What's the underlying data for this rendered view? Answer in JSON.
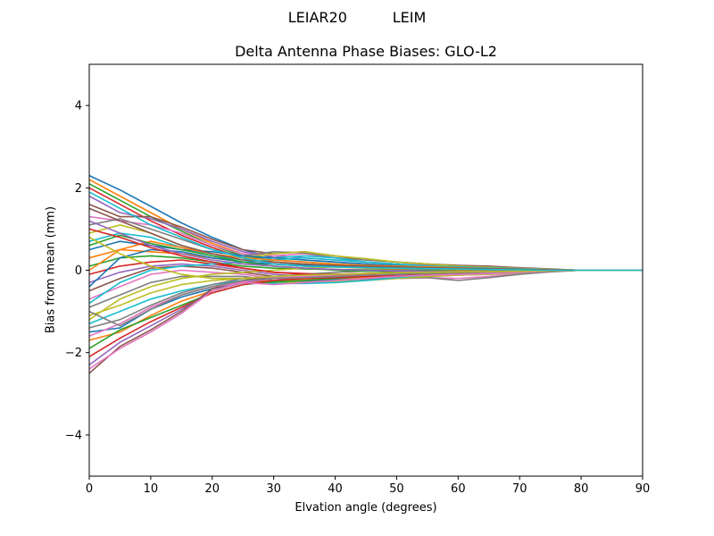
{
  "suptitle": "LEIAR20          LEIM",
  "chart_data": {
    "type": "line",
    "title": "Delta Antenna Phase Biases: GLO-L2",
    "xlabel": "Elvation angle (degrees)",
    "ylabel": "Bias from mean (mm)",
    "xlim": [
      0,
      90
    ],
    "ylim": [
      -5,
      5
    ],
    "xticks": [
      0,
      10,
      20,
      30,
      40,
      50,
      60,
      70,
      80,
      90
    ],
    "yticks": [
      -4,
      -2,
      0,
      2,
      4
    ],
    "ytick_labels": [
      "−4",
      "−2",
      "0",
      "2",
      "4"
    ],
    "grid": false,
    "legend": "none",
    "colors": [
      "#1f77b4",
      "#ff7f0e",
      "#2ca02c",
      "#d62728",
      "#9467bd",
      "#8c564b",
      "#e377c2",
      "#7f7f7f",
      "#bcbd22",
      "#17becf"
    ],
    "x": [
      0,
      5,
      10,
      15,
      20,
      25,
      30,
      35,
      40,
      45,
      50,
      55,
      60,
      65,
      70,
      75,
      80,
      85,
      90
    ],
    "series": [
      {
        "values": [
          2.3,
          1.95,
          1.55,
          1.15,
          0.8,
          0.5,
          0.3,
          0.25,
          0.2,
          0.15,
          0.12,
          0.1,
          0.08,
          0.06,
          0.04,
          0.02,
          0.0,
          0.0,
          0.0
        ]
      },
      {
        "values": [
          2.2,
          1.8,
          1.4,
          1.0,
          0.65,
          0.4,
          0.2,
          0.15,
          0.1,
          0.08,
          0.06,
          0.05,
          0.04,
          0.03,
          0.02,
          0.01,
          0.0,
          0.0,
          0.0
        ]
      },
      {
        "values": [
          2.1,
          1.7,
          1.3,
          0.95,
          0.6,
          0.35,
          0.25,
          0.2,
          0.15,
          0.1,
          0.08,
          0.06,
          0.05,
          0.04,
          0.03,
          0.01,
          0.0,
          0.0,
          0.0
        ]
      },
      {
        "values": [
          2.0,
          1.6,
          1.2,
          0.85,
          0.55,
          0.3,
          0.15,
          0.1,
          0.08,
          0.06,
          0.05,
          0.04,
          0.03,
          0.02,
          0.01,
          0.0,
          0.0,
          0.0,
          0.0
        ]
      },
      {
        "values": [
          1.8,
          1.4,
          1.25,
          1.0,
          0.7,
          0.45,
          0.35,
          0.3,
          0.25,
          0.2,
          0.15,
          0.12,
          0.1,
          0.08,
          0.05,
          0.02,
          0.0,
          0.0,
          0.0
        ]
      },
      {
        "values": [
          1.6,
          1.3,
          1.3,
          1.05,
          0.75,
          0.5,
          0.4,
          0.45,
          0.35,
          0.25,
          0.2,
          0.15,
          0.12,
          0.1,
          0.06,
          0.03,
          0.0,
          0.0,
          0.0
        ]
      },
      {
        "values": [
          1.3,
          1.2,
          1.1,
          0.9,
          0.6,
          0.4,
          0.35,
          0.4,
          0.3,
          0.2,
          0.15,
          0.1,
          0.08,
          0.06,
          0.04,
          0.02,
          0.0,
          0.0,
          0.0
        ]
      },
      {
        "values": [
          1.1,
          1.25,
          1.0,
          0.75,
          0.5,
          0.35,
          0.45,
          0.42,
          0.3,
          0.25,
          0.2,
          0.15,
          0.1,
          0.08,
          0.05,
          0.02,
          0.0,
          0.0,
          0.0
        ]
      },
      {
        "values": [
          0.9,
          1.1,
          0.9,
          0.6,
          0.4,
          0.3,
          0.4,
          0.45,
          0.35,
          0.28,
          0.2,
          0.15,
          0.1,
          0.07,
          0.04,
          0.02,
          0.0,
          0.0,
          0.0
        ]
      },
      {
        "values": [
          0.7,
          0.9,
          0.8,
          0.55,
          0.35,
          0.25,
          0.3,
          0.35,
          0.3,
          0.2,
          0.15,
          0.1,
          0.08,
          0.05,
          0.03,
          0.01,
          0.0,
          0.0,
          0.0
        ]
      },
      {
        "values": [
          0.5,
          0.7,
          0.6,
          0.5,
          0.45,
          0.35,
          0.3,
          0.25,
          0.2,
          0.15,
          0.1,
          0.08,
          0.06,
          0.04,
          0.02,
          0.01,
          0.0,
          0.0,
          0.0
        ]
      },
      {
        "values": [
          0.3,
          0.5,
          0.45,
          0.4,
          0.3,
          0.2,
          0.15,
          0.1,
          0.08,
          0.05,
          0.03,
          0.02,
          0.01,
          0.0,
          0.0,
          0.0,
          0.0,
          0.0,
          0.0
        ]
      },
      {
        "values": [
          0.1,
          0.3,
          0.35,
          0.3,
          0.2,
          0.1,
          0.05,
          0.03,
          0.02,
          0.01,
          0.0,
          -0.01,
          -0.02,
          -0.02,
          -0.01,
          0.0,
          0.0,
          0.0,
          0.0
        ]
      },
      {
        "values": [
          -0.1,
          0.1,
          0.2,
          0.25,
          0.15,
          0.05,
          -0.05,
          -0.08,
          -0.1,
          -0.08,
          -0.06,
          -0.05,
          -0.04,
          -0.03,
          -0.02,
          -0.01,
          0.0,
          0.0,
          0.0
        ]
      },
      {
        "values": [
          -0.3,
          -0.05,
          0.1,
          0.15,
          0.1,
          0.0,
          -0.1,
          -0.15,
          -0.2,
          -0.18,
          -0.15,
          -0.12,
          -0.1,
          -0.08,
          -0.05,
          -0.02,
          0.0,
          0.0,
          0.0
        ]
      },
      {
        "values": [
          -0.5,
          -0.2,
          0.05,
          0.1,
          0.05,
          -0.05,
          -0.15,
          -0.2,
          -0.25,
          -0.2,
          -0.18,
          -0.15,
          -0.12,
          -0.1,
          -0.06,
          -0.03,
          0.0,
          0.0,
          0.0
        ]
      },
      {
        "values": [
          -0.7,
          -0.4,
          -0.1,
          0.0,
          -0.05,
          -0.1,
          -0.2,
          -0.25,
          -0.3,
          -0.25,
          -0.2,
          -0.18,
          -0.2,
          -0.15,
          -0.08,
          -0.03,
          0.0,
          0.0,
          0.0
        ]
      },
      {
        "values": [
          -0.9,
          -0.6,
          -0.3,
          -0.15,
          -0.15,
          -0.15,
          -0.25,
          -0.28,
          -0.25,
          -0.22,
          -0.2,
          -0.18,
          -0.25,
          -0.18,
          -0.1,
          -0.04,
          0.0,
          0.0,
          0.0
        ]
      },
      {
        "values": [
          -1.1,
          -0.85,
          -0.55,
          -0.35,
          -0.25,
          -0.2,
          -0.3,
          -0.3,
          -0.28,
          -0.25,
          -0.2,
          -0.15,
          -0.12,
          -0.1,
          -0.06,
          -0.02,
          0.0,
          0.0,
          0.0
        ]
      },
      {
        "values": [
          -1.3,
          -1.0,
          -0.7,
          -0.5,
          -0.35,
          -0.25,
          -0.32,
          -0.32,
          -0.3,
          -0.25,
          -0.18,
          -0.12,
          -0.1,
          -0.08,
          -0.05,
          -0.02,
          0.0,
          0.0,
          0.0
        ]
      },
      {
        "values": [
          -1.5,
          -1.4,
          -0.95,
          -0.65,
          -0.45,
          -0.3,
          -0.28,
          -0.25,
          -0.22,
          -0.2,
          -0.15,
          -0.1,
          -0.08,
          -0.06,
          -0.04,
          -0.02,
          0.0,
          0.0,
          0.0
        ]
      },
      {
        "values": [
          -1.7,
          -1.5,
          -1.1,
          -0.75,
          -0.5,
          -0.3,
          -0.25,
          -0.22,
          -0.2,
          -0.18,
          -0.15,
          -0.12,
          -0.1,
          -0.07,
          -0.04,
          -0.02,
          0.0,
          0.0,
          0.0
        ]
      },
      {
        "values": [
          -1.9,
          -1.45,
          -1.15,
          -0.85,
          -0.55,
          -0.35,
          -0.28,
          -0.25,
          -0.2,
          -0.15,
          -0.12,
          -0.1,
          -0.08,
          -0.06,
          -0.04,
          -0.02,
          0.0,
          0.0,
          0.0
        ]
      },
      {
        "values": [
          -2.1,
          -1.65,
          -1.25,
          -0.9,
          -0.55,
          -0.35,
          -0.25,
          -0.2,
          -0.18,
          -0.15,
          -0.12,
          -0.1,
          -0.08,
          -0.06,
          -0.04,
          -0.02,
          0.0,
          0.0,
          0.0
        ]
      },
      {
        "values": [
          -2.3,
          -1.75,
          -1.35,
          -0.95,
          -0.5,
          -0.3,
          -0.2,
          -0.18,
          -0.15,
          -0.12,
          -0.1,
          -0.08,
          -0.06,
          -0.05,
          -0.03,
          -0.01,
          0.0,
          0.0,
          0.0
        ]
      },
      {
        "values": [
          -2.5,
          -1.85,
          -1.45,
          -1.0,
          -0.45,
          -0.25,
          -0.15,
          -0.12,
          -0.1,
          -0.08,
          -0.06,
          -0.05,
          -0.04,
          -0.03,
          -0.02,
          -0.01,
          0.0,
          0.0,
          0.0
        ]
      },
      {
        "values": [
          -2.4,
          -1.9,
          -1.5,
          -1.05,
          -0.5,
          -0.28,
          -0.18,
          -0.15,
          -0.12,
          -0.1,
          -0.08,
          -0.06,
          -0.05,
          -0.04,
          -0.02,
          -0.01,
          0.0,
          0.0,
          0.0
        ]
      },
      {
        "values": [
          -1.4,
          -1.2,
          -0.85,
          -0.55,
          -0.35,
          -0.2,
          -0.15,
          -0.1,
          -0.05,
          -0.02,
          0.0,
          0.02,
          0.03,
          0.02,
          0.01,
          0.0,
          0.0,
          0.0,
          0.0
        ]
      },
      {
        "values": [
          -1.2,
          -0.7,
          -0.4,
          -0.2,
          -0.1,
          -0.05,
          0.0,
          0.05,
          0.08,
          0.06,
          0.05,
          0.04,
          0.03,
          0.02,
          0.01,
          0.0,
          0.0,
          0.0,
          0.0
        ]
      },
      {
        "values": [
          -0.8,
          -0.3,
          0.0,
          0.1,
          0.15,
          0.2,
          0.25,
          0.3,
          0.25,
          0.2,
          0.15,
          0.1,
          0.08,
          0.05,
          0.03,
          0.01,
          0.0,
          0.0,
          0.0
        ]
      },
      {
        "values": [
          -0.4,
          0.3,
          0.5,
          0.45,
          0.3,
          0.2,
          0.15,
          0.12,
          0.1,
          0.08,
          0.06,
          0.05,
          0.04,
          0.03,
          0.02,
          0.01,
          0.0,
          0.0,
          0.0
        ]
      },
      {
        "values": [
          0.0,
          0.5,
          0.7,
          0.55,
          0.4,
          0.3,
          0.25,
          0.2,
          0.15,
          0.12,
          0.1,
          0.08,
          0.06,
          0.04,
          0.02,
          0.01,
          0.0,
          0.0,
          0.0
        ]
      },
      {
        "values": [
          0.6,
          0.85,
          0.65,
          0.5,
          0.35,
          0.2,
          0.1,
          0.05,
          0.0,
          -0.02,
          -0.04,
          -0.05,
          -0.04,
          -0.03,
          -0.02,
          -0.01,
          0.0,
          0.0,
          0.0
        ]
      },
      {
        "values": [
          1.0,
          0.8,
          0.55,
          0.35,
          0.2,
          0.05,
          -0.05,
          -0.1,
          -0.1,
          -0.08,
          -0.06,
          -0.05,
          -0.04,
          -0.03,
          -0.02,
          -0.01,
          0.0,
          0.0,
          0.0
        ]
      },
      {
        "values": [
          1.2,
          0.9,
          0.6,
          0.4,
          0.25,
          0.15,
          0.1,
          0.05,
          0.02,
          0.0,
          -0.02,
          -0.03,
          -0.03,
          -0.02,
          -0.01,
          0.0,
          0.0,
          0.0,
          0.0
        ]
      },
      {
        "values": [
          1.5,
          1.2,
          0.9,
          0.6,
          0.4,
          0.25,
          0.2,
          0.15,
          0.12,
          0.1,
          0.08,
          0.06,
          0.05,
          0.04,
          0.02,
          0.01,
          0.0,
          0.0,
          0.0
        ]
      },
      {
        "values": [
          -1.6,
          -1.3,
          -0.9,
          -0.6,
          -0.4,
          -0.3,
          -0.35,
          -0.3,
          -0.25,
          -0.2,
          -0.15,
          -0.12,
          -0.1,
          -0.08,
          -0.05,
          -0.02,
          0.0,
          0.0,
          0.0
        ]
      },
      {
        "values": [
          -1.0,
          -1.35,
          -0.95,
          -0.6,
          -0.4,
          -0.25,
          -0.2,
          -0.18,
          -0.15,
          -0.12,
          -0.1,
          -0.08,
          -0.06,
          -0.04,
          -0.02,
          -0.01,
          0.0,
          0.0,
          0.0
        ]
      },
      {
        "values": [
          0.8,
          0.4,
          0.1,
          -0.1,
          -0.2,
          -0.2,
          -0.15,
          -0.12,
          -0.1,
          -0.08,
          -0.06,
          -0.05,
          -0.04,
          -0.03,
          -0.02,
          -0.01,
          0.0,
          0.0,
          0.0
        ]
      },
      {
        "values": [
          1.9,
          1.5,
          1.1,
          0.8,
          0.5,
          0.3,
          0.15,
          0.1,
          0.08,
          0.06,
          0.05,
          0.04,
          0.03,
          0.02,
          0.01,
          0.0,
          0.0,
          0.0,
          0.0
        ]
      }
    ]
  }
}
